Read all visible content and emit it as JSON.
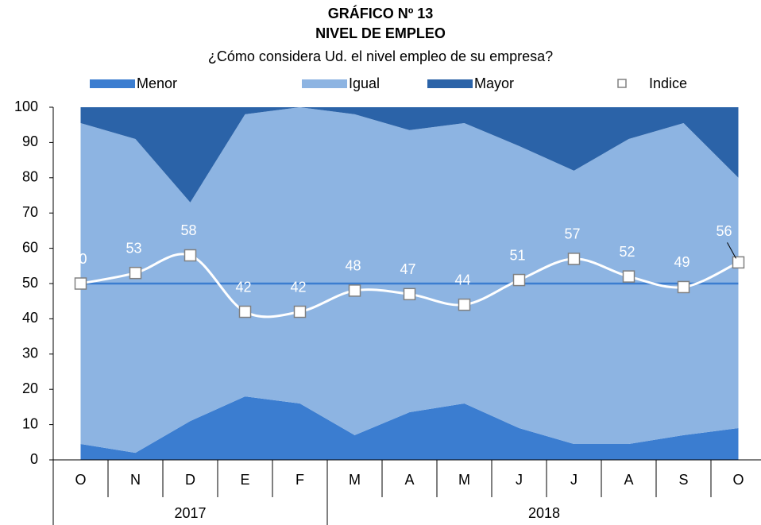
{
  "chart_data": {
    "type": "stacked_area",
    "title": "GRÁFICO Nº 13",
    "subtitle": "NIVEL DE EMPLEO",
    "question": "¿Cómo considera Ud. el nivel empleo de su empresa?",
    "categories": [
      "O",
      "N",
      "D",
      "E",
      "F",
      "M",
      "A",
      "M",
      "J",
      "J",
      "A",
      "S",
      "O"
    ],
    "year_groups": [
      "2017",
      "2018"
    ],
    "series": [
      {
        "name": "Menor",
        "color": "#3b7dd0",
        "values": [
          4.5,
          2,
          11,
          18,
          16,
          7,
          13.5,
          16,
          9,
          4.5,
          4.5,
          7,
          9
        ]
      },
      {
        "name": "Igual",
        "color": "#8db4e2",
        "values": [
          91,
          89,
          62,
          80,
          84,
          91,
          80,
          79.5,
          80,
          77.5,
          86.5,
          88.5,
          71
        ]
      },
      {
        "name": "Mayor",
        "color": "#2b63a8",
        "values": [
          4.5,
          9,
          27,
          2,
          0,
          2,
          6.5,
          4.5,
          11,
          18,
          9,
          4.5,
          20
        ]
      }
    ],
    "index": {
      "name": "Indice",
      "color": "#ffffff",
      "values": [
        50,
        53,
        58,
        42,
        42,
        48,
        47,
        44,
        51,
        57,
        52,
        49,
        56
      ]
    },
    "reference_line": {
      "value": 50,
      "color": "#3b7dd0"
    },
    "ylim": [
      0,
      100
    ],
    "yticks": [
      0,
      10,
      20,
      30,
      40,
      50,
      60,
      70,
      80,
      90,
      100
    ]
  }
}
